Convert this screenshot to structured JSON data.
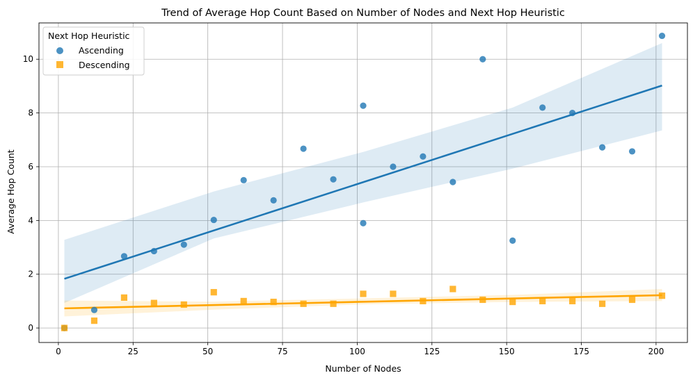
{
  "chart_data": {
    "type": "scatter",
    "title": "Trend of Average Hop Count Based on Number of Nodes and Next Hop Heuristic",
    "xlabel": "Number of Nodes",
    "ylabel": "Average Hop Count",
    "xlim": [
      -6.5,
      210.5
    ],
    "ylim": [
      -0.54,
      11.35
    ],
    "xticks": [
      0,
      25,
      50,
      75,
      100,
      125,
      150,
      175,
      200
    ],
    "yticks": [
      0,
      2,
      4,
      6,
      8,
      10
    ],
    "grid": true,
    "legend": {
      "title": "Next Hop Heuristic",
      "position": "top-left"
    },
    "series": [
      {
        "name": "Ascending",
        "marker": "circle",
        "color": "#1f77b4",
        "points": [
          [
            2,
            0.0
          ],
          [
            12,
            0.67
          ],
          [
            22,
            2.67
          ],
          [
            32,
            2.86
          ],
          [
            42,
            3.1
          ],
          [
            52,
            4.02
          ],
          [
            62,
            5.5
          ],
          [
            72,
            4.75
          ],
          [
            82,
            6.67
          ],
          [
            92,
            5.53
          ],
          [
            102,
            8.27
          ],
          [
            102,
            3.9
          ],
          [
            112,
            6.0
          ],
          [
            122,
            6.38
          ],
          [
            132,
            5.43
          ],
          [
            142,
            10.0
          ],
          [
            152,
            3.25
          ],
          [
            162,
            8.2
          ],
          [
            172,
            8.0
          ],
          [
            182,
            6.72
          ],
          [
            192,
            6.57
          ],
          [
            202,
            10.87
          ]
        ],
        "fit_line": [
          [
            2,
            1.83
          ],
          [
            202,
            9.02
          ]
        ],
        "ci_upper": [
          [
            2,
            3.28
          ],
          [
            52,
            5.08
          ],
          [
            102,
            6.55
          ],
          [
            152,
            8.2
          ],
          [
            202,
            10.6
          ]
        ],
        "ci_lower": [
          [
            2,
            0.93
          ],
          [
            52,
            3.33
          ],
          [
            102,
            4.67
          ],
          [
            152,
            5.93
          ],
          [
            202,
            7.35
          ]
        ]
      },
      {
        "name": "Descending",
        "marker": "square",
        "color": "#ffa500",
        "points": [
          [
            2,
            0.0
          ],
          [
            12,
            0.27
          ],
          [
            22,
            1.13
          ],
          [
            32,
            0.93
          ],
          [
            42,
            0.87
          ],
          [
            52,
            1.33
          ],
          [
            62,
            1.0
          ],
          [
            72,
            0.97
          ],
          [
            82,
            0.9
          ],
          [
            92,
            0.9
          ],
          [
            102,
            1.27
          ],
          [
            112,
            1.27
          ],
          [
            122,
            1.0
          ],
          [
            132,
            1.45
          ],
          [
            142,
            1.05
          ],
          [
            152,
            0.97
          ],
          [
            162,
            1.0
          ],
          [
            172,
            1.0
          ],
          [
            182,
            0.9
          ],
          [
            192,
            1.05
          ],
          [
            202,
            1.2
          ]
        ],
        "fit_line": [
          [
            2,
            0.73
          ],
          [
            202,
            1.22
          ]
        ],
        "ci_upper": [
          [
            2,
            1.02
          ],
          [
            52,
            0.98
          ],
          [
            102,
            1.1
          ],
          [
            152,
            1.23
          ],
          [
            202,
            1.45
          ]
        ],
        "ci_lower": [
          [
            2,
            0.43
          ],
          [
            52,
            0.68
          ],
          [
            102,
            0.88
          ],
          [
            152,
            0.97
          ],
          [
            202,
            1.0
          ]
        ]
      }
    ]
  }
}
